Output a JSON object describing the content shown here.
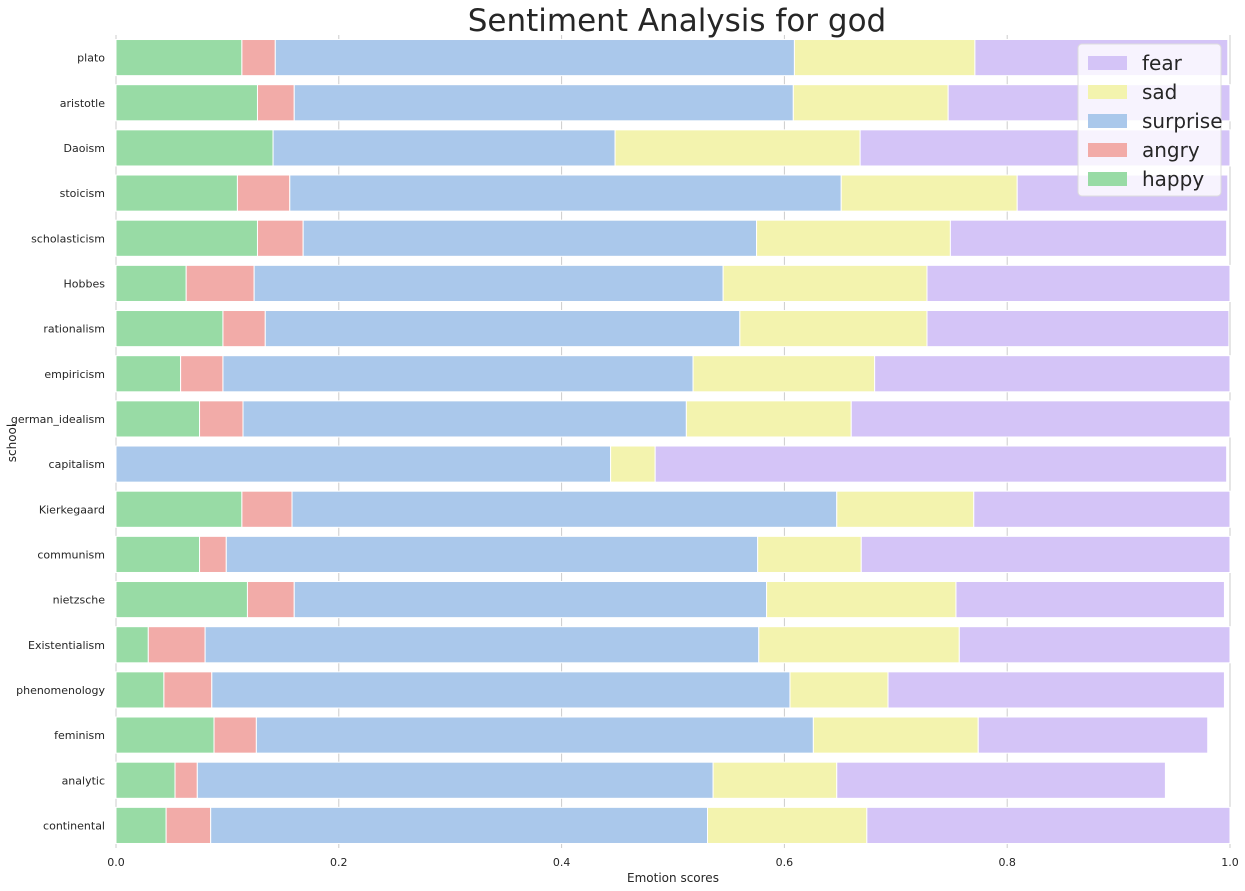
{
  "chart_data": {
    "type": "bar",
    "orientation": "horizontal",
    "stacked": true,
    "title": "Sentiment Analysis for god",
    "xlabel": "Emotion scores",
    "ylabel": "school",
    "xlim": [
      0,
      1
    ],
    "x_ticks": [
      "0.0",
      "0.2",
      "0.4",
      "0.6",
      "0.8",
      "1.0"
    ],
    "grid": "vertical",
    "legend_position": "top-right",
    "categories": [
      "plato",
      "aristotle",
      "Daoism",
      "stoicism",
      "scholasticism",
      "Hobbes",
      "rationalism",
      "empiricism",
      "german_idealism",
      "capitalism",
      "Kierkegaard",
      "communism",
      "nietzsche",
      "Existentialism",
      "phenomenology",
      "feminism",
      "analytic",
      "continental"
    ],
    "series": [
      {
        "name": "happy",
        "color": "#98dba5",
        "values": [
          0.113,
          0.127,
          0.141,
          0.109,
          0.127,
          0.063,
          0.096,
          0.058,
          0.075,
          0.0,
          0.113,
          0.075,
          0.118,
          0.029,
          0.043,
          0.088,
          0.053,
          0.045
        ]
      },
      {
        "name": "angry",
        "color": "#f2aba8",
        "values": [
          0.03,
          0.033,
          0.0,
          0.047,
          0.041,
          0.061,
          0.038,
          0.038,
          0.039,
          0.0,
          0.045,
          0.024,
          0.042,
          0.051,
          0.043,
          0.038,
          0.02,
          0.04
        ]
      },
      {
        "name": "surprise",
        "color": "#aac8eb",
        "values": [
          0.466,
          0.448,
          0.307,
          0.495,
          0.407,
          0.421,
          0.426,
          0.422,
          0.398,
          0.444,
          0.489,
          0.477,
          0.424,
          0.497,
          0.519,
          0.5,
          0.463,
          0.446
        ]
      },
      {
        "name": "sad",
        "color": "#f3f3ae",
        "values": [
          0.162,
          0.139,
          0.22,
          0.158,
          0.174,
          0.183,
          0.168,
          0.163,
          0.148,
          0.04,
          0.123,
          0.093,
          0.17,
          0.18,
          0.088,
          0.148,
          0.111,
          0.143
        ]
      },
      {
        "name": "fear",
        "color": "#d4c4f7",
        "values": [
          0.227,
          0.253,
          0.332,
          0.189,
          0.248,
          0.272,
          0.271,
          0.319,
          0.34,
          0.513,
          0.23,
          0.331,
          0.241,
          0.243,
          0.302,
          0.206,
          0.295,
          0.326
        ]
      }
    ],
    "legend_order": [
      "fear",
      "sad",
      "surprise",
      "angry",
      "happy"
    ]
  }
}
